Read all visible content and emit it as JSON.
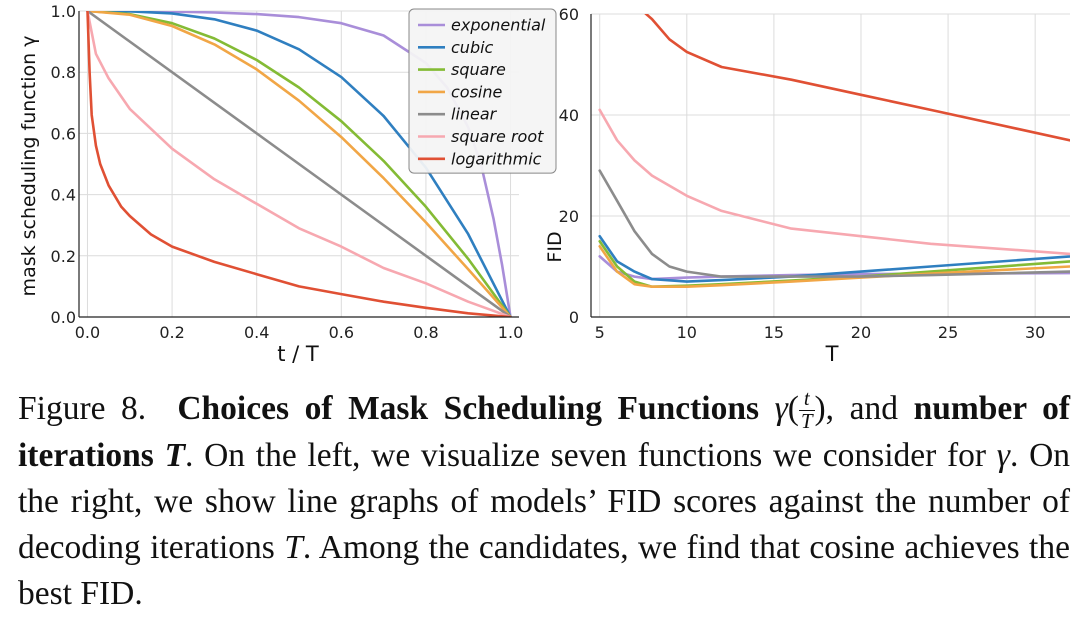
{
  "chart_data": [
    {
      "type": "line",
      "title": "",
      "xlabel": "t / T",
      "ylabel": "mask scheduling function γ",
      "xlim": [
        -0.02,
        1.02
      ],
      "ylim": [
        0,
        1.0
      ],
      "xticks": [
        "0.0",
        "0.2",
        "0.4",
        "0.6",
        "0.8",
        "1.0"
      ],
      "yticks": [
        "0.0",
        "0.2",
        "0.4",
        "0.6",
        "0.8",
        "1.0"
      ],
      "grid": true,
      "legend": "top-right",
      "series": [
        {
          "name": "exponential",
          "color": "#a98ed9",
          "x": [
            0,
            0.1,
            0.2,
            0.3,
            0.4,
            0.5,
            0.6,
            0.7,
            0.8,
            0.85,
            0.9,
            0.93,
            0.96,
            0.98,
            1.0
          ],
          "y": [
            1.0,
            0.999,
            0.998,
            0.995,
            0.99,
            0.98,
            0.96,
            0.92,
            0.83,
            0.75,
            0.62,
            0.5,
            0.32,
            0.17,
            0.0
          ]
        },
        {
          "name": "cubic",
          "color": "#2f7fc0",
          "x": [
            0,
            0.1,
            0.2,
            0.3,
            0.4,
            0.5,
            0.6,
            0.7,
            0.8,
            0.9,
            1.0
          ],
          "y": [
            1.0,
            0.999,
            0.992,
            0.973,
            0.936,
            0.875,
            0.784,
            0.657,
            0.488,
            0.271,
            0.0
          ]
        },
        {
          "name": "square",
          "color": "#84bb35",
          "x": [
            0,
            0.1,
            0.2,
            0.3,
            0.4,
            0.5,
            0.6,
            0.7,
            0.8,
            0.9,
            1.0
          ],
          "y": [
            1.0,
            0.99,
            0.96,
            0.91,
            0.84,
            0.75,
            0.64,
            0.51,
            0.36,
            0.19,
            0.0
          ]
        },
        {
          "name": "cosine",
          "color": "#f1a646",
          "x": [
            0,
            0.1,
            0.2,
            0.3,
            0.4,
            0.5,
            0.6,
            0.7,
            0.8,
            0.9,
            1.0
          ],
          "y": [
            1.0,
            0.988,
            0.951,
            0.891,
            0.809,
            0.707,
            0.588,
            0.454,
            0.309,
            0.156,
            0.0
          ]
        },
        {
          "name": "linear",
          "color": "#8c8c8c",
          "x": [
            0,
            1.0
          ],
          "y": [
            1.0,
            0.0
          ]
        },
        {
          "name": "square root",
          "color": "#f7a8b0",
          "x": [
            0,
            0.02,
            0.05,
            0.1,
            0.2,
            0.3,
            0.4,
            0.5,
            0.6,
            0.7,
            0.8,
            0.9,
            1.0
          ],
          "y": [
            1.0,
            0.86,
            0.78,
            0.68,
            0.55,
            0.45,
            0.37,
            0.29,
            0.23,
            0.16,
            0.11,
            0.05,
            0.0
          ]
        },
        {
          "name": "logarithmic",
          "color": "#e05034",
          "x": [
            0,
            0.005,
            0.01,
            0.02,
            0.03,
            0.05,
            0.08,
            0.1,
            0.15,
            0.2,
            0.3,
            0.4,
            0.5,
            0.6,
            0.7,
            0.8,
            0.9,
            1.0
          ],
          "y": [
            1.0,
            0.8,
            0.66,
            0.56,
            0.5,
            0.43,
            0.36,
            0.33,
            0.27,
            0.23,
            0.18,
            0.14,
            0.1,
            0.075,
            0.05,
            0.03,
            0.012,
            0.0
          ]
        }
      ]
    },
    {
      "type": "line",
      "title": "",
      "xlabel": "T",
      "ylabel": "FID",
      "xlim": [
        4.5,
        32
      ],
      "ylim": [
        0,
        60
      ],
      "xticks": [
        "5",
        "10",
        "15",
        "20",
        "25",
        "30"
      ],
      "yticks": [
        "0",
        "20",
        "40",
        "60"
      ],
      "grid": true,
      "series": [
        {
          "name": "exponential",
          "color": "#a98ed9",
          "x": [
            5,
            6,
            7,
            8,
            10,
            12,
            16,
            20,
            24,
            32
          ],
          "y": [
            12,
            9,
            8,
            7.5,
            7.8,
            8,
            8.3,
            8.5,
            8.6,
            8.7
          ]
        },
        {
          "name": "cubic",
          "color": "#2f7fc0",
          "x": [
            5,
            6,
            7,
            8,
            10,
            12,
            16,
            20,
            24,
            32
          ],
          "y": [
            16,
            11,
            9,
            7.5,
            7,
            7.3,
            8,
            9,
            10,
            12
          ]
        },
        {
          "name": "square",
          "color": "#84bb35",
          "x": [
            5,
            6,
            7,
            8,
            10,
            12,
            16,
            20,
            24,
            32
          ],
          "y": [
            15,
            10,
            7,
            6,
            6.2,
            6.5,
            7.2,
            8,
            9,
            11
          ]
        },
        {
          "name": "cosine",
          "color": "#f1a646",
          "x": [
            5,
            6,
            7,
            8,
            10,
            12,
            16,
            20,
            24,
            32
          ],
          "y": [
            14,
            9,
            6.5,
            6,
            6,
            6.3,
            7,
            7.8,
            8.6,
            10
          ]
        },
        {
          "name": "linear",
          "color": "#8c8c8c",
          "x": [
            5,
            6,
            7,
            8,
            9,
            10,
            12,
            16,
            20,
            24,
            32
          ],
          "y": [
            29,
            23,
            17,
            12.5,
            10,
            9,
            8,
            8,
            8,
            8.3,
            9
          ]
        },
        {
          "name": "square root",
          "color": "#f7a8b0",
          "x": [
            5,
            6,
            7,
            8,
            10,
            12,
            16,
            20,
            24,
            32
          ],
          "y": [
            41,
            35,
            31,
            28,
            24,
            21,
            17.5,
            16,
            14.5,
            12.5
          ]
        },
        {
          "name": "logarithmic",
          "color": "#e05034",
          "x": [
            7,
            8,
            9,
            10,
            12,
            16,
            20,
            24,
            32
          ],
          "y": [
            62,
            59,
            55,
            52.5,
            49.5,
            47,
            44,
            41,
            35
          ]
        }
      ]
    }
  ],
  "caption": {
    "lead": "Figure 8.",
    "bold1": "Choices of Mask Scheduling Functions",
    "gamma_sym": "γ",
    "paren_open": "(",
    "frac_num": "t",
    "frac_den": "T",
    "paren_close": ")",
    "after_frac": ", and",
    "bold2": "number of iterations",
    "bold2_var": "T",
    "part3": ". On the left, we visualize seven functions we consider for",
    "part3_gamma": "γ",
    "part4": ". On the right, we show line graphs of models’ FID scores against the number of decoding iterations",
    "part4_var": "T",
    "part5": ". Among the candidates, we find that cosine achieves the best FID."
  }
}
